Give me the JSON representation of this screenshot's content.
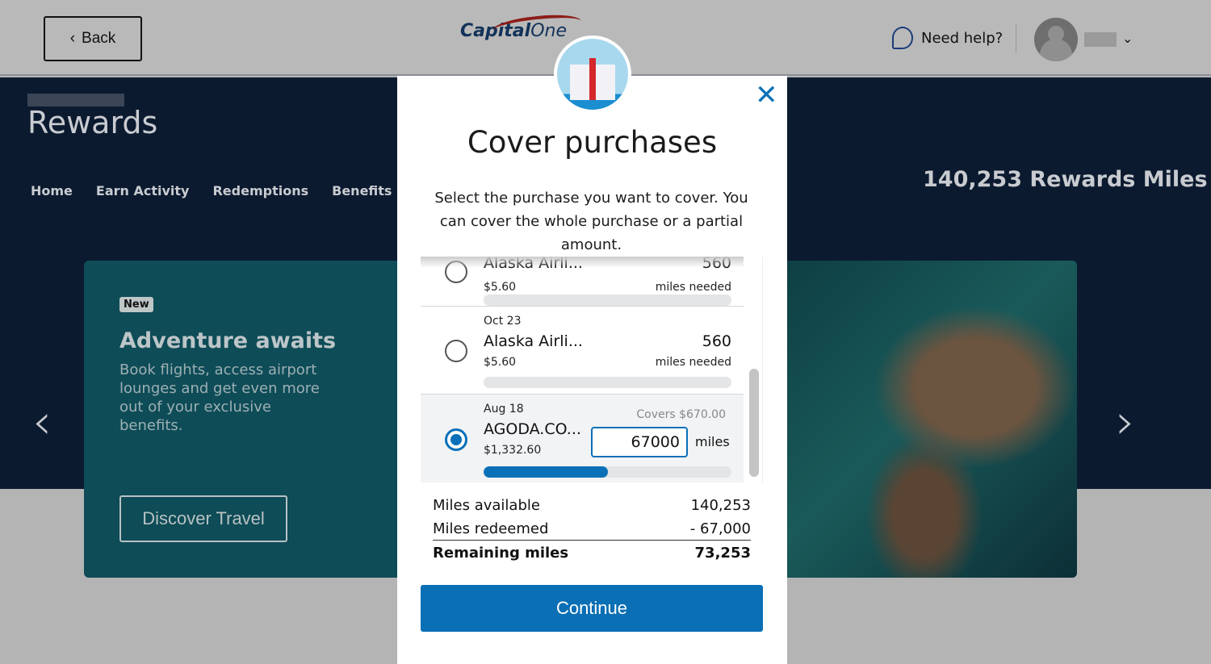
{
  "header": {
    "back_label": "Back",
    "logo_text": "Capital One",
    "help_label": "Need help?"
  },
  "page": {
    "title": "Rewards",
    "nav": [
      "Home",
      "Earn Activity",
      "Redemptions",
      "Benefits"
    ],
    "miles_balance": "140,253 Rewards Miles"
  },
  "promo": {
    "badge": "New",
    "title": "Adventure awaits",
    "description": "Book flights, access airport lounges and get even more out of your exclusive benefits.",
    "cta": "Discover Travel"
  },
  "modal": {
    "title": "Cover purchases",
    "description": "Select the purchase you want to cover. You can cover the whole purchase or a partial amount.",
    "purchases": [
      {
        "date": "",
        "merchant": "Alaska Airli...",
        "amount": "$5.60",
        "miles": "560",
        "miles_label": "miles needed",
        "selected": false,
        "progress": 0
      },
      {
        "date": "Oct 23",
        "merchant": "Alaska Airli...",
        "amount": "$5.60",
        "miles": "560",
        "miles_label": "miles needed",
        "selected": false,
        "progress": 0
      },
      {
        "date": "Aug 18",
        "merchant": "AGODA.CO...",
        "amount": "$1,332.60",
        "covers": "Covers $670.00",
        "miles_input": "67000",
        "miles_unit": "miles",
        "selected": true,
        "progress": 0.5
      }
    ],
    "summary": {
      "available_label": "Miles available",
      "available": "140,253",
      "redeemed_label": "Miles redeemed",
      "redeemed": "- 67,000",
      "remaining_label": "Remaining miles",
      "remaining": "73,253"
    },
    "continue_label": "Continue"
  },
  "colors": {
    "accent": "#0a70b8",
    "banner": "#0b1a2f",
    "card": "#0e4c57"
  }
}
